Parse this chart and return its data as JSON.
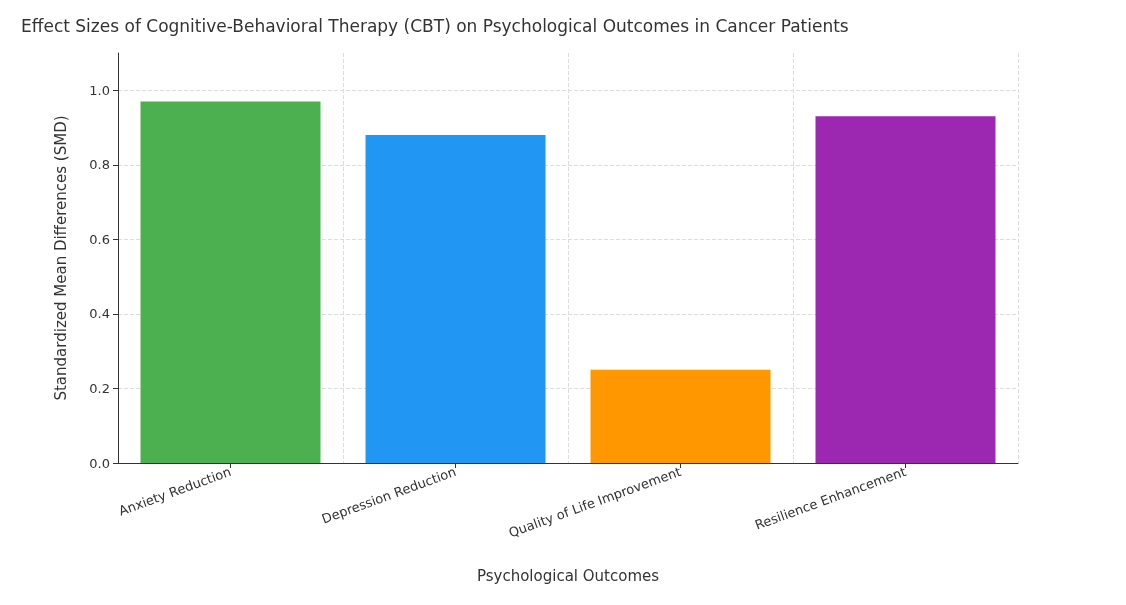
{
  "chart_data": {
    "type": "bar",
    "title": "Effect Sizes of Cognitive-Behavioral Therapy (CBT) on Psychological Outcomes in Cancer Patients",
    "xlabel": "Psychological Outcomes",
    "ylabel": "Standardized Mean Differences (SMD)",
    "categories": [
      "Anxiety Reduction",
      "Depression Reduction",
      "Quality of Life Improvement",
      "Resilience Enhancement"
    ],
    "values": [
      0.97,
      0.88,
      0.25,
      0.93
    ],
    "colors": [
      "#4caf50",
      "#2196f3",
      "#ff9800",
      "#9c27b0"
    ],
    "ylim": [
      0,
      1.1
    ],
    "yticks": [
      {
        "value": 0,
        "label": "0.0"
      },
      0.2,
      0.4,
      0.6,
      0.8,
      {
        "value": 1,
        "label": "1.0"
      }
    ],
    "grid": true
  }
}
